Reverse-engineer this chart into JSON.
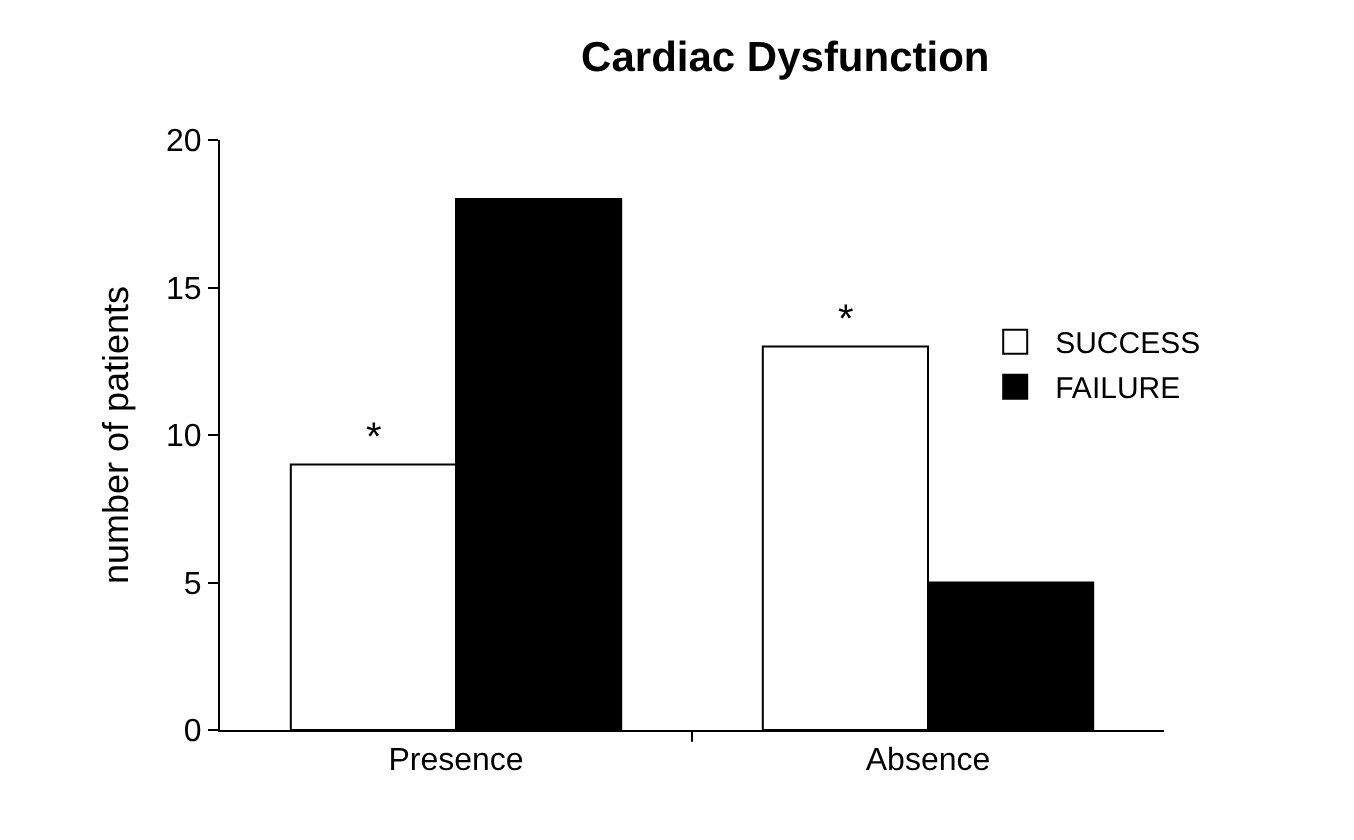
{
  "chart_data": {
    "type": "bar",
    "title": "Cardiac Dysfunction",
    "ylabel": "number of patients",
    "categories": [
      "Presence",
      "Absence"
    ],
    "series": [
      {
        "name": "SUCCESS",
        "color": "#ffffff",
        "values": [
          9,
          13
        ]
      },
      {
        "name": "FAILURE",
        "color": "#000000",
        "values": [
          18,
          5
        ]
      }
    ],
    "ylim": [
      0,
      20
    ],
    "yticks": [
      0,
      5,
      10,
      15,
      20
    ],
    "grid": false,
    "legend": "right",
    "annotations": [
      {
        "text": "*",
        "x": "Presence",
        "y": 9
      },
      {
        "text": "*",
        "x": "Absence",
        "y": 13
      }
    ]
  }
}
